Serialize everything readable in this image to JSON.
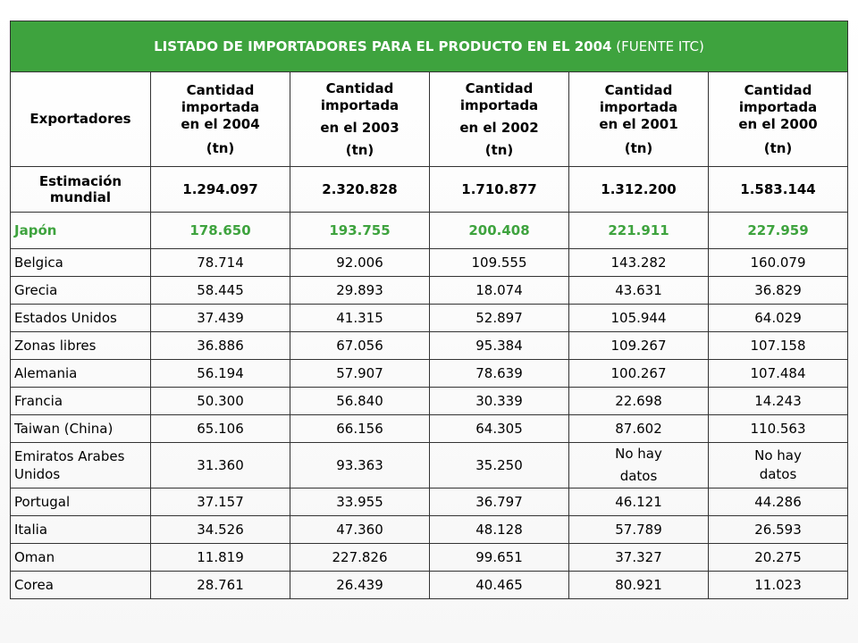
{
  "title": {
    "main": "LISTADO DE IMPORTADORES PARA EL PRODUCTO EN EL 2004",
    "source": "(FUENTE ITC)"
  },
  "headers": {
    "exporters": "Exportadores",
    "y2004": [
      "Cantidad",
      "importada",
      "en el 2004",
      "(tn)"
    ],
    "y2003": [
      "Cantidad",
      "importada",
      "en el 2003",
      "(tn)"
    ],
    "y2002": [
      "Cantidad",
      "importada",
      "en el 2002",
      "(tn)"
    ],
    "y2001": [
      "Cantidad",
      "importada",
      "en el 2001",
      "(tn)"
    ],
    "y2000": [
      "Cantidad",
      "importada",
      "en el 2000",
      "(tn)"
    ]
  },
  "world": {
    "label": "Estimación mundial",
    "values": [
      "1.294.097",
      "2.320.828",
      "1.710.877",
      "1.312.200",
      "1.583.144"
    ]
  },
  "japan": {
    "label": "Japón",
    "values": [
      "178.650",
      "193.755",
      "200.408",
      "221.911",
      "227.959"
    ]
  },
  "rows": [
    {
      "country": "Belgica",
      "values": [
        "78.714",
        "92.006",
        "109.555",
        "143.282",
        "160.079"
      ]
    },
    {
      "country": "Grecia",
      "values": [
        "58.445",
        "29.893",
        "18.074",
        "43.631",
        "36.829"
      ]
    },
    {
      "country": "Estados Unidos",
      "values": [
        "37.439",
        "41.315",
        "52.897",
        "105.944",
        "64.029"
      ]
    },
    {
      "country": "Zonas libres",
      "values": [
        "36.886",
        "67.056",
        "95.384",
        "109.267",
        "107.158"
      ]
    },
    {
      "country": "Alemania",
      "values": [
        "56.194",
        "57.907",
        "78.639",
        "100.267",
        "107.484"
      ]
    },
    {
      "country": "Francia",
      "values": [
        "50.300",
        "56.840",
        "30.339",
        "22.698",
        "14.243"
      ]
    },
    {
      "country": "Taiwan (China)",
      "values": [
        "65.106",
        "66.156",
        "64.305",
        "87.602",
        "110.563"
      ]
    },
    {
      "country": "Emiratos Arabes Unidos",
      "values": [
        "31.360",
        "93.363",
        "35.250"
      ],
      "nodata": [
        "No hay",
        "datos"
      ]
    },
    {
      "country": "Portugal",
      "values": [
        "37.157",
        "33.955",
        "36.797",
        "46.121",
        "44.286"
      ]
    },
    {
      "country": "Italia",
      "values": [
        "34.526",
        "47.360",
        "48.128",
        "57.789",
        "26.593"
      ]
    },
    {
      "country": "Oman",
      "values": [
        "11.819",
        "227.826",
        "99.651",
        "37.327",
        "20.275"
      ]
    },
    {
      "country": "Corea",
      "values": [
        "28.761",
        "26.439",
        "40.465",
        "80.921",
        "11.023"
      ]
    }
  ],
  "colors": {
    "accent_green": "#3ea33e"
  }
}
